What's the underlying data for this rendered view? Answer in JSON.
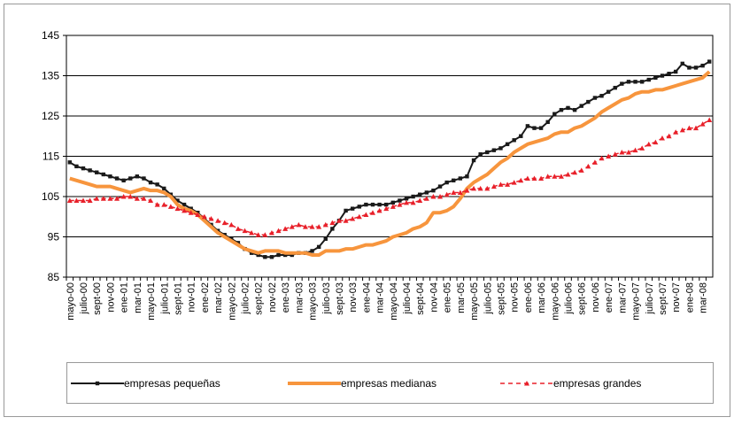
{
  "chart_data": {
    "type": "line",
    "categories": [
      "mayo-00",
      null,
      "julio-00",
      null,
      "sept-00",
      null,
      "nov-00",
      null,
      "ene-01",
      null,
      "mar-01",
      null,
      "mayo-01",
      null,
      "julio-01",
      null,
      "sept-01",
      null,
      "nov-01",
      null,
      "ene-02",
      null,
      "mar-02",
      null,
      "mayo-02",
      null,
      "julio-02",
      null,
      "sept-02",
      null,
      "nov-02",
      null,
      "ene-03",
      null,
      "mar-03",
      null,
      "mayo-03",
      null,
      "julio-03",
      null,
      "sept-03",
      null,
      "nov-03",
      null,
      "ene-04",
      null,
      "mar-04",
      null,
      "mayo-04",
      null,
      "julio-04",
      null,
      "sept-04",
      null,
      "nov-04",
      null,
      "ene-05",
      null,
      "mar-05",
      null,
      "mayo-05",
      null,
      "julio-05",
      null,
      "sept-05",
      null,
      "nov-05",
      null,
      "ene-06",
      null,
      "mar-06",
      null,
      "mayo-06",
      null,
      "julio-06",
      null,
      "sept-06",
      null,
      "nov-06",
      null,
      "ene-07",
      null,
      "mar-07",
      null,
      "mayo-07",
      null,
      "julio-07",
      null,
      "sept-07",
      null,
      "nov-07",
      null,
      "ene-08",
      null,
      "mar-08",
      null
    ],
    "series": [
      {
        "name": "empresas pequeñas",
        "color": "#1a1a1a",
        "marker": "square",
        "line_style": "solid",
        "values": [
          113.5,
          112.5,
          112,
          111.5,
          111,
          110.5,
          110,
          109.5,
          109,
          109.5,
          110,
          109.5,
          108.5,
          108,
          107,
          105.5,
          104,
          103,
          102,
          101,
          99.5,
          98,
          96.5,
          95.5,
          94.5,
          93.5,
          92,
          91,
          90.5,
          90,
          90,
          90.5,
          90.5,
          90.5,
          91,
          91,
          91.5,
          92.5,
          94.5,
          97,
          99,
          101.5,
          102,
          102.5,
          103,
          103,
          103,
          103,
          103.5,
          104,
          104.5,
          105,
          105.5,
          106,
          106.5,
          107.5,
          108.5,
          109,
          109.5,
          110,
          114,
          115.5,
          116,
          116.5,
          117,
          118,
          119,
          120,
          122.5,
          122,
          122,
          123.5,
          125.5,
          126.5,
          127,
          126.5,
          127.5,
          128.5,
          129.5,
          130,
          131,
          132,
          133,
          133.5,
          133.5,
          133.5,
          134,
          134.5,
          135,
          135.5,
          136,
          138,
          137,
          137,
          137.5,
          138.5
        ]
      },
      {
        "name": "empresas medianas",
        "color": "#f7953d",
        "marker": "none",
        "line_style": "thick",
        "values": [
          109.5,
          109,
          108.5,
          108,
          107.5,
          107.5,
          107.5,
          107,
          106.5,
          106,
          106.5,
          107,
          106.5,
          106.5,
          106,
          105,
          103,
          102,
          101.5,
          100.5,
          99,
          97.5,
          96,
          95,
          94,
          93,
          92,
          91.5,
          91,
          91.5,
          91.5,
          91.5,
          91,
          91,
          91,
          91,
          90.5,
          90.5,
          91.5,
          91.5,
          91.5,
          92,
          92,
          92.5,
          93,
          93,
          93.5,
          94,
          95,
          95.5,
          96,
          97,
          97.5,
          98.5,
          101,
          101,
          101.5,
          102.5,
          104.5,
          107,
          108.5,
          109.5,
          110.5,
          112,
          113.5,
          114.5,
          116,
          117,
          118,
          118.5,
          119,
          119.5,
          120.5,
          121,
          121,
          122,
          122.5,
          123.5,
          124.5,
          126,
          127,
          128,
          129,
          129.5,
          130.5,
          131,
          131,
          131.5,
          131.5,
          132,
          132.5,
          133,
          133.5,
          134,
          134.5,
          136
        ]
      },
      {
        "name": "empresas grandes",
        "color": "#e8202a",
        "marker": "triangle",
        "line_style": "dashed",
        "values": [
          104,
          104,
          104,
          104,
          104.5,
          104.5,
          104.5,
          104.5,
          105,
          105,
          104.5,
          104.5,
          104,
          103,
          103,
          102.5,
          102,
          101.5,
          101,
          100.5,
          100,
          99.5,
          99,
          98.5,
          98,
          97,
          96.5,
          96,
          95.5,
          95.5,
          96,
          96.5,
          97,
          97.5,
          98,
          97.5,
          97.5,
          97.5,
          98,
          98.5,
          99,
          99,
          99.5,
          100,
          100.5,
          101,
          101.5,
          102,
          102.5,
          103,
          103.5,
          103.5,
          104,
          104.5,
          105,
          105,
          105.5,
          106,
          106,
          106.5,
          107,
          107,
          107,
          107.5,
          108,
          108,
          108.5,
          109,
          109.5,
          109.5,
          109.5,
          110,
          110,
          110,
          110.5,
          111,
          111.5,
          112.5,
          113.5,
          114.5,
          115,
          115.5,
          116,
          116,
          116.5,
          117,
          118,
          118.5,
          119.5,
          120,
          121,
          121.5,
          122,
          122,
          123,
          124
        ]
      }
    ],
    "ylim": [
      85,
      145
    ],
    "yticks": [
      85,
      95,
      105,
      115,
      125,
      135,
      145
    ],
    "grid": true,
    "legend": "bottom"
  }
}
